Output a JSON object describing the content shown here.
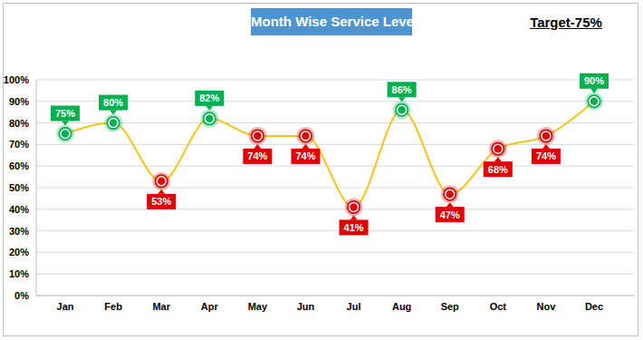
{
  "chart_data": {
    "type": "line",
    "title": "Month Wise Service Level",
    "annotations": [
      "Target-75%"
    ],
    "categories": [
      "Jan",
      "Feb",
      "Mar",
      "Apr",
      "May",
      "Jun",
      "Jul",
      "Aug",
      "Sep",
      "Oct",
      "Nov",
      "Dec"
    ],
    "values": [
      75,
      80,
      53,
      82,
      74,
      74,
      41,
      86,
      47,
      68,
      74,
      90
    ],
    "value_labels": [
      "75%",
      "80%",
      "53%",
      "82%",
      "74%",
      "74%",
      "41%",
      "86%",
      "47%",
      "68%",
      "74%",
      "90%"
    ],
    "colors": [
      "#00b050",
      "#00b050",
      "#e00000",
      "#00b050",
      "#e00000",
      "#e00000",
      "#e00000",
      "#00b050",
      "#e00000",
      "#e00000",
      "#e00000",
      "#00b050"
    ],
    "color": "#f5c518",
    "line_style": "smooth",
    "marker": "circle",
    "ylim": [
      0,
      100
    ],
    "yticks": [
      {
        "value": 0,
        "label": "0%"
      },
      {
        "value": 10,
        "label": "10%"
      },
      {
        "value": 20,
        "label": "20%"
      },
      {
        "value": 30,
        "label": "30%"
      },
      {
        "value": 40,
        "label": "40%"
      },
      {
        "value": 50,
        "label": "50%"
      },
      {
        "value": 60,
        "label": "60%"
      },
      {
        "value": 70,
        "label": "70%"
      },
      {
        "value": 80,
        "label": "80%"
      },
      {
        "value": 90,
        "label": "90%"
      },
      {
        "value": 100,
        "label": "100%"
      }
    ],
    "grid": true,
    "data_labels": true
  }
}
